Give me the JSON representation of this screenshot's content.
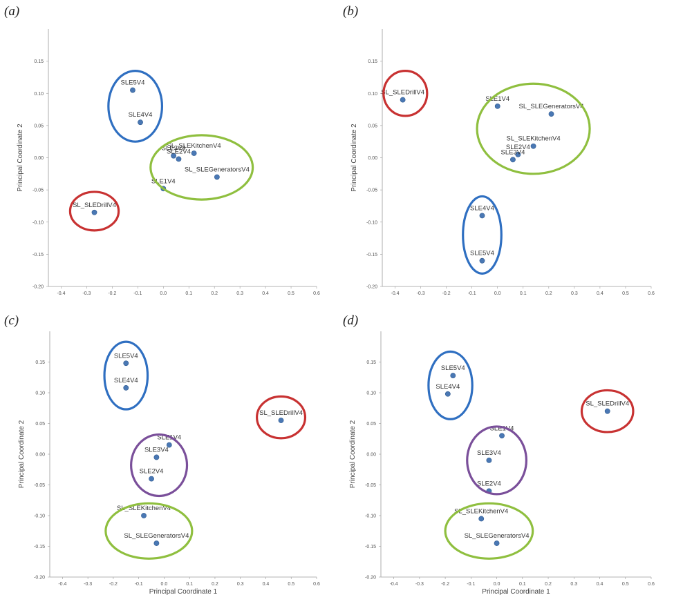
{
  "chart_data": [
    {
      "type": "scatter",
      "panel_label": "(a)",
      "xlabel": "",
      "ylabel": "Principal Coordinate 2",
      "xlim": [
        -0.45,
        0.6
      ],
      "ylim": [
        -0.2,
        0.2
      ],
      "xticks": [
        "-0.4",
        "-0.3",
        "-0.2",
        "-0.1",
        "0.0",
        "0.1",
        "0.2",
        "0.3",
        "0.4",
        "0.5",
        "0.6"
      ],
      "yticks": [
        "0.15",
        "0.10",
        "0.05",
        "0.00",
        "-0.05",
        "-0.10",
        "-0.15",
        "-0.20"
      ],
      "points": [
        {
          "label": "SLE5V4",
          "x": -0.12,
          "y": 0.105
        },
        {
          "label": "SLE4V4",
          "x": -0.09,
          "y": 0.055
        },
        {
          "label": "SL_SLEKitchenV4",
          "x": 0.12,
          "y": 0.007
        },
        {
          "label": "SLE3V4",
          "x": 0.04,
          "y": 0.003
        },
        {
          "label": "SLE2V4",
          "x": 0.06,
          "y": -0.002
        },
        {
          "label": "SL_SLEGeneratorsV4",
          "x": 0.21,
          "y": -0.03
        },
        {
          "label": "SLE1V4",
          "x": 0.0,
          "y": -0.048
        },
        {
          "label": "SL_SLEDrillV4",
          "x": -0.27,
          "y": -0.085
        }
      ],
      "ellipses": [
        {
          "color": "#2f6fc1",
          "cx": -0.11,
          "cy": 0.08,
          "rx": 0.105,
          "ry": 0.055
        },
        {
          "color": "#8fbf3f",
          "cx": 0.15,
          "cy": -0.015,
          "rx": 0.2,
          "ry": 0.05
        },
        {
          "color": "#c83232",
          "cx": -0.27,
          "cy": -0.083,
          "rx": 0.095,
          "ry": 0.03
        }
      ]
    },
    {
      "type": "scatter",
      "panel_label": "(b)",
      "xlabel": "",
      "ylabel": "Principal Coordinate 2",
      "xlim": [
        -0.45,
        0.6
      ],
      "ylim": [
        -0.2,
        0.2
      ],
      "xticks": [
        "-0.4",
        "-0.3",
        "-0.2",
        "-0.1",
        "0.0",
        "0.1",
        "0.2",
        "0.3",
        "0.4",
        "0.5",
        "0.6"
      ],
      "yticks": [
        "0.15",
        "0.10",
        "0.05",
        "0.00",
        "-0.05",
        "-0.10",
        "-0.15",
        "-0.20"
      ],
      "points": [
        {
          "label": "SL_SLEDrillV4",
          "x": -0.37,
          "y": 0.09
        },
        {
          "label": "SLE1V4",
          "x": -0.0,
          "y": 0.08
        },
        {
          "label": "SL_SLEGeneratorsV4",
          "x": 0.21,
          "y": 0.068
        },
        {
          "label": "SL_SLEKitchenV4",
          "x": 0.14,
          "y": 0.018
        },
        {
          "label": "SLE2V4",
          "x": 0.08,
          "y": 0.005
        },
        {
          "label": "SLE3V4",
          "x": 0.06,
          "y": -0.003
        },
        {
          "label": "SLE4V4",
          "x": -0.06,
          "y": -0.09
        },
        {
          "label": "SLE5V4",
          "x": -0.06,
          "y": -0.16
        }
      ],
      "ellipses": [
        {
          "color": "#c83232",
          "cx": -0.36,
          "cy": 0.1,
          "rx": 0.085,
          "ry": 0.035
        },
        {
          "color": "#8fbf3f",
          "cx": 0.14,
          "cy": 0.045,
          "rx": 0.22,
          "ry": 0.07
        },
        {
          "color": "#2f6fc1",
          "cx": -0.06,
          "cy": -0.12,
          "rx": 0.075,
          "ry": 0.06
        }
      ]
    },
    {
      "type": "scatter",
      "panel_label": "(c)",
      "xlabel": "Principal Coordinate 1",
      "ylabel": "Principal Coordinate 2",
      "xlim": [
        -0.45,
        0.6
      ],
      "ylim": [
        -0.2,
        0.2
      ],
      "xticks": [
        "-0.4",
        "-0.3",
        "-0.2",
        "-0.1",
        "0.0",
        "0.1",
        "0.2",
        "0.3",
        "0.4",
        "0.5",
        "0.6"
      ],
      "yticks": [
        "0.15",
        "0.10",
        "0.05",
        "0.00",
        "-0.05",
        "-0.10",
        "-0.15",
        "-0.20"
      ],
      "points": [
        {
          "label": "SLE5V4",
          "x": -0.15,
          "y": 0.148
        },
        {
          "label": "SLE4V4",
          "x": -0.15,
          "y": 0.108
        },
        {
          "label": "SL_SLEDrillV4",
          "x": 0.46,
          "y": 0.055
        },
        {
          "label": "SLE1V4",
          "x": 0.02,
          "y": 0.015
        },
        {
          "label": "SLE3V4",
          "x": -0.03,
          "y": -0.005
        },
        {
          "label": "SLE2V4",
          "x": -0.05,
          "y": -0.04
        },
        {
          "label": "SL_SLEKitchenV4",
          "x": -0.08,
          "y": -0.1
        },
        {
          "label": "SL_SLEGeneratorsV4",
          "x": -0.03,
          "y": -0.145
        }
      ],
      "ellipses": [
        {
          "color": "#2f6fc1",
          "cx": -0.15,
          "cy": 0.128,
          "rx": 0.085,
          "ry": 0.055
        },
        {
          "color": "#c83232",
          "cx": 0.46,
          "cy": 0.06,
          "rx": 0.095,
          "ry": 0.034
        },
        {
          "color": "#7a4f9a",
          "cx": -0.02,
          "cy": -0.018,
          "rx": 0.11,
          "ry": 0.05
        },
        {
          "color": "#8fbf3f",
          "cx": -0.06,
          "cy": -0.125,
          "rx": 0.17,
          "ry": 0.045
        }
      ]
    },
    {
      "type": "scatter",
      "panel_label": "(d)",
      "xlabel": "Principal Coordinate 1",
      "ylabel": "Principal Coordinate 2",
      "xlim": [
        -0.45,
        0.6
      ],
      "ylim": [
        -0.2,
        0.2
      ],
      "xticks": [
        "-0.4",
        "-0.3",
        "-0.2",
        "-0.1",
        "0.0",
        "0.1",
        "0.2",
        "0.3",
        "0.4",
        "0.5",
        "0.6"
      ],
      "yticks": [
        "0.15",
        "0.10",
        "0.05",
        "0.00",
        "-0.05",
        "-0.10",
        "-0.15",
        "-0.20"
      ],
      "points": [
        {
          "label": "SLE5V4",
          "x": -0.17,
          "y": 0.128
        },
        {
          "label": "SLE4V4",
          "x": -0.19,
          "y": 0.098
        },
        {
          "label": "SL_SLEDrillV4",
          "x": 0.43,
          "y": 0.07
        },
        {
          "label": "SLE1V4",
          "x": 0.02,
          "y": 0.03
        },
        {
          "label": "SLE3V4",
          "x": -0.03,
          "y": -0.01
        },
        {
          "label": "SLE2V4",
          "x": -0.03,
          "y": -0.06
        },
        {
          "label": "SL_SLEKitchenV4",
          "x": -0.06,
          "y": -0.105
        },
        {
          "label": "SL_SLEGeneratorsV4",
          "x": -0.0,
          "y": -0.145
        }
      ],
      "ellipses": [
        {
          "color": "#2f6fc1",
          "cx": -0.18,
          "cy": 0.112,
          "rx": 0.085,
          "ry": 0.055
        },
        {
          "color": "#c83232",
          "cx": 0.43,
          "cy": 0.07,
          "rx": 0.1,
          "ry": 0.034
        },
        {
          "color": "#7a4f9a",
          "cx": 0.0,
          "cy": -0.01,
          "rx": 0.115,
          "ry": 0.055
        },
        {
          "color": "#8fbf3f",
          "cx": -0.03,
          "cy": -0.125,
          "rx": 0.17,
          "ry": 0.045
        }
      ]
    }
  ]
}
